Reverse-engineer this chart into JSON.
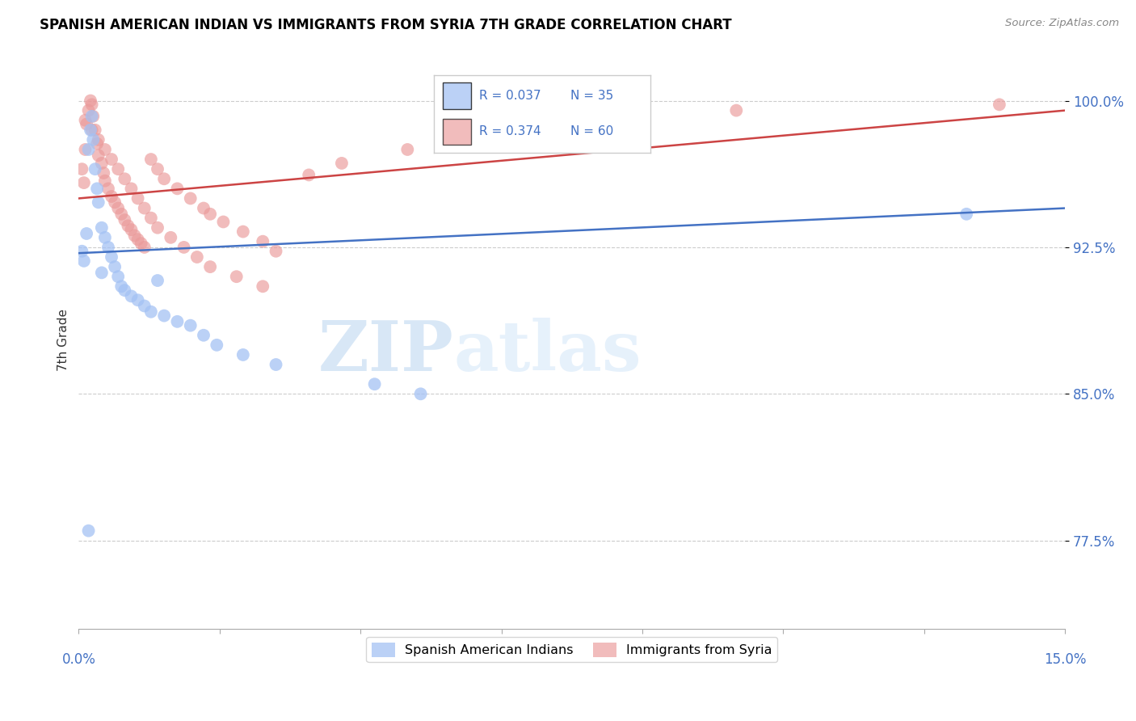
{
  "title": "SPANISH AMERICAN INDIAN VS IMMIGRANTS FROM SYRIA 7TH GRADE CORRELATION CHART",
  "source": "Source: ZipAtlas.com",
  "ylabel": "7th Grade",
  "xlim": [
    0.0,
    15.0
  ],
  "ylim": [
    73.0,
    102.5
  ],
  "yticks": [
    77.5,
    85.0,
    92.5,
    100.0
  ],
  "ytick_labels": [
    "77.5%",
    "85.0%",
    "92.5%",
    "100.0%"
  ],
  "legend_r_blue": "R = 0.037",
  "legend_n_blue": "N = 35",
  "legend_r_pink": "R = 0.374",
  "legend_n_pink": "N = 60",
  "blue_color": "#a4c2f4",
  "pink_color": "#ea9999",
  "line_blue": "#4472c4",
  "line_pink": "#cc4444",
  "text_blue": "#4472c4",
  "watermark_zip": "ZIP",
  "watermark_atlas": "atlas",
  "blue_scatter_x": [
    0.05,
    0.08,
    0.12,
    0.15,
    0.18,
    0.2,
    0.22,
    0.25,
    0.28,
    0.3,
    0.35,
    0.4,
    0.45,
    0.5,
    0.55,
    0.6,
    0.65,
    0.7,
    0.8,
    0.9,
    1.0,
    1.1,
    1.3,
    1.5,
    1.7,
    1.9,
    2.1,
    2.5,
    3.0,
    4.5,
    5.2,
    0.15,
    0.35,
    1.2,
    13.5
  ],
  "blue_scatter_y": [
    92.3,
    91.8,
    93.2,
    97.5,
    98.5,
    99.2,
    98.0,
    96.5,
    95.5,
    94.8,
    93.5,
    93.0,
    92.5,
    92.0,
    91.5,
    91.0,
    90.5,
    90.3,
    90.0,
    89.8,
    89.5,
    89.2,
    89.0,
    88.7,
    88.5,
    88.0,
    87.5,
    87.0,
    86.5,
    85.5,
    85.0,
    78.0,
    91.2,
    90.8,
    94.2
  ],
  "pink_scatter_x": [
    0.05,
    0.08,
    0.1,
    0.12,
    0.15,
    0.18,
    0.2,
    0.22,
    0.25,
    0.28,
    0.3,
    0.35,
    0.38,
    0.4,
    0.45,
    0.5,
    0.55,
    0.6,
    0.65,
    0.7,
    0.75,
    0.8,
    0.85,
    0.9,
    0.95,
    1.0,
    1.1,
    1.2,
    1.3,
    1.5,
    1.7,
    1.9,
    2.0,
    2.2,
    2.5,
    2.8,
    3.0,
    3.5,
    4.0,
    5.0,
    0.1,
    0.2,
    0.3,
    0.4,
    0.5,
    0.6,
    0.7,
    0.8,
    0.9,
    1.0,
    1.1,
    1.2,
    1.4,
    1.6,
    1.8,
    2.0,
    2.4,
    2.8,
    10.0,
    14.0
  ],
  "pink_scatter_y": [
    96.5,
    95.8,
    97.5,
    98.8,
    99.5,
    100.0,
    99.8,
    99.2,
    98.5,
    97.8,
    97.2,
    96.8,
    96.3,
    95.9,
    95.5,
    95.1,
    94.8,
    94.5,
    94.2,
    93.9,
    93.6,
    93.4,
    93.1,
    92.9,
    92.7,
    92.5,
    97.0,
    96.5,
    96.0,
    95.5,
    95.0,
    94.5,
    94.2,
    93.8,
    93.3,
    92.8,
    92.3,
    96.2,
    96.8,
    97.5,
    99.0,
    98.5,
    98.0,
    97.5,
    97.0,
    96.5,
    96.0,
    95.5,
    95.0,
    94.5,
    94.0,
    93.5,
    93.0,
    92.5,
    92.0,
    91.5,
    91.0,
    90.5,
    99.5,
    99.8
  ]
}
